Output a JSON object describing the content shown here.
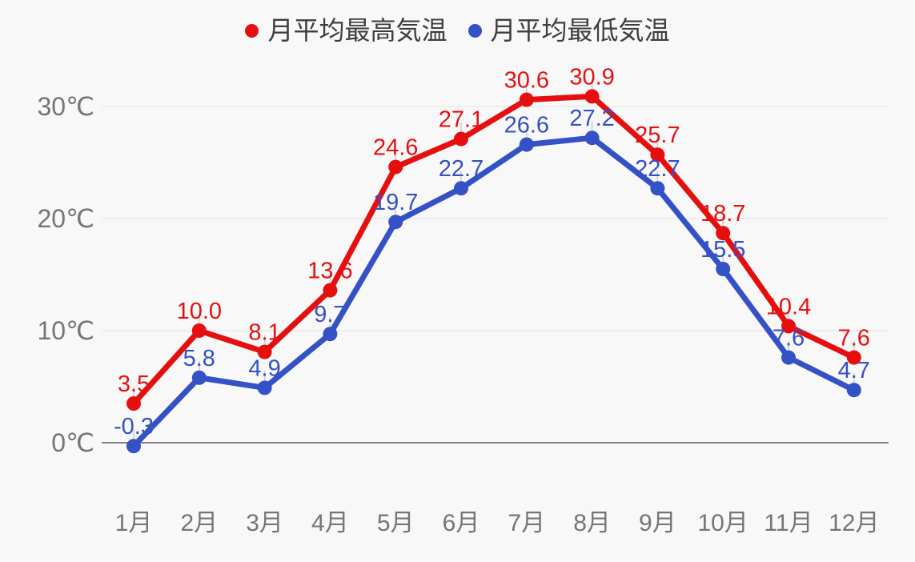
{
  "colors": {
    "background": "#f8f8f8",
    "grid_line": "#e2e2e2",
    "axis_line": "#818181",
    "axis_label": "#757575",
    "leader_tick": "#cccccc",
    "legend_text": "#3e3e3e",
    "series_high": "#e60f0f",
    "series_low": "#3451c5"
  },
  "chart_data": {
    "type": "line",
    "title": "",
    "categories": [
      "1月",
      "2月",
      "3月",
      "4月",
      "5月",
      "6月",
      "7月",
      "8月",
      "9月",
      "10月",
      "11月",
      "12月"
    ],
    "series": [
      {
        "name": "月平均最高気温",
        "color": "#e60f0f",
        "values": [
          3.5,
          10.0,
          8.1,
          13.6,
          24.6,
          27.1,
          30.6,
          30.9,
          25.7,
          18.7,
          10.4,
          7.6
        ]
      },
      {
        "name": "月平均最低気温",
        "color": "#3451c5",
        "values": [
          -0.3,
          5.8,
          4.9,
          9.7,
          19.7,
          22.7,
          26.6,
          27.2,
          22.7,
          15.5,
          7.6,
          4.7
        ]
      }
    ],
    "y_ticks": [
      {
        "value": 0,
        "label": "0℃"
      },
      {
        "value": 10,
        "label": "10℃"
      },
      {
        "value": 20,
        "label": "20℃"
      },
      {
        "value": 30,
        "label": "30℃"
      }
    ],
    "ylim": [
      -5,
      33
    ],
    "grid": true,
    "legend_position": "top",
    "value_labels": true
  }
}
